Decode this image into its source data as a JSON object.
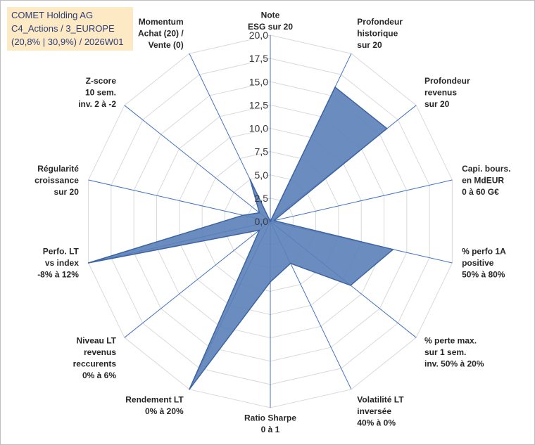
{
  "chart_data": {
    "type": "radar",
    "title_lines": [
      "COMET Holding AG",
      "C4_Actions / 3_EUROPE",
      "(20,8% | 30,9%) / 2026W01"
    ],
    "rlim": [
      0,
      20
    ],
    "ticks": [
      "0,0",
      "2,5",
      "5,0",
      "7,5",
      "10,0",
      "12,5",
      "15,0",
      "17,5",
      "20,0"
    ],
    "categories": [
      "Note ESG sur 20",
      "Profondeur historique sur 20",
      "Profondeur revenus sur 20",
      "Capi. bours. en MdEUR 0 à 60 G€",
      "% perfo 1A positive 50% à 80%",
      "% perte max. sur 1 sem. inv. 50% à 20%",
      "Volatilité LT inversée 40% à 0%",
      "Ratio Sharpe 0 à 1",
      "Rendement LT 0% à 20%",
      "Niveau LT revenus reccurents 0% à 6%",
      "Perfo. LT vs index -8% à 12%",
      "Régularité croissance sur 20",
      "Z-score 10 sem. inv. 2 à -2",
      "Momentum Achat (20) / Vente (0)"
    ],
    "label_lines": [
      [
        "Note",
        "ESG sur 20"
      ],
      [
        "Profondeur",
        "historique",
        "sur 20"
      ],
      [
        "Profondeur",
        "revenus",
        "sur 20"
      ],
      [
        "Capi. bours.",
        "en MdEUR",
        "0 à 60 G€"
      ],
      [
        "% perfo 1A",
        "positive",
        "50% à 80%"
      ],
      [
        "% perte max.",
        "sur 1 sem.",
        "inv. 50% à 20%"
      ],
      [
        "Volatilité LT",
        "inversée",
        "40% à 0%"
      ],
      [
        "Ratio Sharpe",
        "0 à 1"
      ],
      [
        "Rendement LT",
        "0% à 20%"
      ],
      [
        "Niveau LT",
        "revenus",
        "reccurents",
        "0% à 6%"
      ],
      [
        "Perfo. LT",
        "vs index",
        "-8% à 12%"
      ],
      [
        "Régularité",
        "croissance",
        "sur 20"
      ],
      [
        "Z-score",
        "10 sem.",
        "inv. 2 à -2"
      ],
      [
        "Momentum",
        "Achat (20) /",
        "Vente (0)"
      ]
    ],
    "series": [
      {
        "name": "COMET Holding AG",
        "values": [
          0,
          16,
          16,
          0.4,
          13.5,
          11,
          5,
          6.5,
          20,
          1.5,
          20,
          3,
          1.5,
          5
        ]
      }
    ],
    "colors": {
      "fill": "#5b80b8",
      "stroke": "#3c64a4",
      "grid": "#d9d9d9",
      "spoke": "#4472c4",
      "title_bg": "#fde9c4",
      "title_text": "#2c3e78"
    }
  }
}
